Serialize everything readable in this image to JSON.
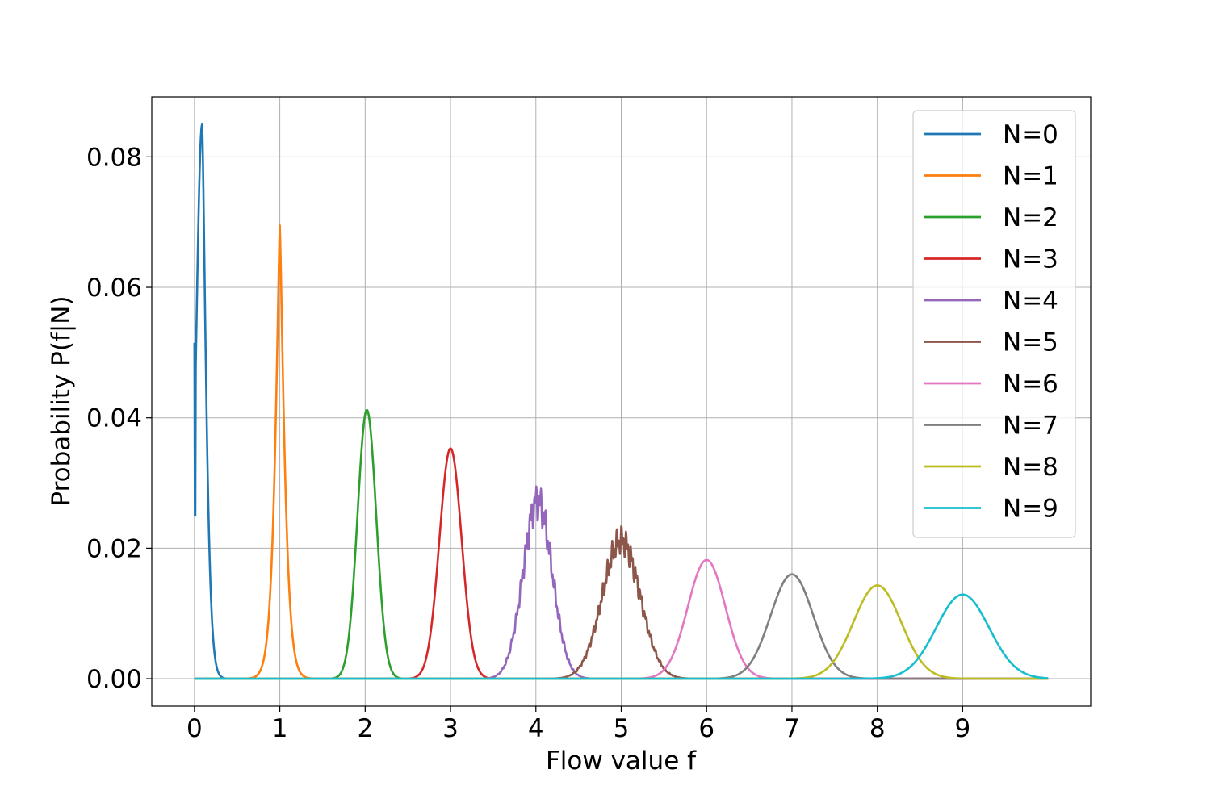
{
  "chart_data": {
    "type": "line",
    "title": "",
    "xlabel": "Flow value f",
    "ylabel": "Probability P(f|N)",
    "xlim": [
      -0.5,
      10.5
    ],
    "ylim": [
      -0.0042,
      0.0892
    ],
    "xticks": [
      0,
      1,
      2,
      3,
      4,
      5,
      6,
      7,
      8,
      9
    ],
    "xtick_labels": [
      "0",
      "1",
      "2",
      "3",
      "4",
      "5",
      "6",
      "7",
      "8",
      "9"
    ],
    "yticks": [
      0.0,
      0.02,
      0.04,
      0.06,
      0.08
    ],
    "ytick_labels": [
      "0.00",
      "0.02",
      "0.04",
      "0.06",
      "0.08"
    ],
    "grid": true,
    "legend_position": "top-right",
    "series": [
      {
        "name": "N=0",
        "color": "#1f77b4",
        "peak_x": 0.09,
        "peak_y": 0.085,
        "width": 0.07,
        "start_y": 0.0515,
        "x": [
          0,
          0.01,
          0.03,
          0.05,
          0.07,
          0.09,
          0.11,
          0.13,
          0.16,
          0.2,
          0.25,
          0.3,
          0.4,
          0.5,
          0.7,
          1.0,
          10.0
        ],
        "y": [
          0.0515,
          0.025,
          0.047,
          0.07,
          0.082,
          0.085,
          0.08,
          0.067,
          0.043,
          0.018,
          0.005,
          0.0015,
          0.0003,
          0.0001,
          0.0,
          0.0,
          0.0
        ]
      },
      {
        "name": "N=1",
        "color": "#ff7f0e",
        "peak_x": 1.0,
        "peak_y": 0.0695,
        "width": 0.065,
        "x": [
          0,
          0.6,
          0.75,
          0.85,
          0.9,
          0.95,
          0.98,
          1.0,
          1.02,
          1.05,
          1.1,
          1.15,
          1.25,
          1.4,
          10.0
        ],
        "y": [
          0.0,
          0.0,
          0.001,
          0.005,
          0.013,
          0.035,
          0.045,
          0.0695,
          0.045,
          0.03,
          0.013,
          0.005,
          0.001,
          0.0,
          0.0
        ]
      },
      {
        "name": "N=2",
        "color": "#2ca02c",
        "peak_x": 2.02,
        "peak_y": 0.0412,
        "width": 0.11,
        "x": [
          0,
          1.5,
          1.7,
          1.8,
          1.9,
          1.96,
          2.02,
          2.08,
          2.15,
          2.25,
          2.35,
          2.55,
          10.0
        ],
        "y": [
          0.0,
          0.0,
          0.002,
          0.008,
          0.022,
          0.033,
          0.0412,
          0.035,
          0.022,
          0.008,
          0.002,
          0.0,
          0.0
        ]
      },
      {
        "name": "N=3",
        "color": "#d62728",
        "peak_x": 3.0,
        "peak_y": 0.0353,
        "width": 0.13,
        "x": [
          0,
          2.5,
          2.7,
          2.8,
          2.9,
          2.95,
          3.0,
          3.05,
          3.1,
          3.2,
          3.3,
          3.5,
          10.0
        ],
        "y": [
          0.0,
          0.0,
          0.003,
          0.01,
          0.024,
          0.03,
          0.0353,
          0.031,
          0.024,
          0.01,
          0.003,
          0.0,
          0.0
        ]
      },
      {
        "name": "N=4",
        "color": "#9467bd",
        "peak_x": 4.02,
        "peak_y": 0.0272,
        "width": 0.17,
        "x": [
          0,
          3.4,
          3.6,
          3.75,
          3.85,
          3.95,
          4.02,
          4.1,
          4.2,
          4.3,
          4.45,
          4.7,
          10.0
        ],
        "y": [
          0.0,
          0.0,
          0.002,
          0.007,
          0.014,
          0.022,
          0.0272,
          0.023,
          0.015,
          0.007,
          0.002,
          0.0,
          0.0
        ]
      },
      {
        "name": "N=5",
        "color": "#8c564b",
        "peak_x": 5.0,
        "peak_y": 0.0212,
        "width": 0.22,
        "x": [
          0,
          4.3,
          4.5,
          4.7,
          4.85,
          4.95,
          5.0,
          5.1,
          5.2,
          5.35,
          5.55,
          5.9,
          10.0
        ],
        "y": [
          0.0,
          0.0,
          0.002,
          0.006,
          0.011,
          0.014,
          0.0212,
          0.019,
          0.016,
          0.009,
          0.003,
          0.0,
          0.0
        ]
      },
      {
        "name": "N=6",
        "color": "#e377c2",
        "peak_x": 6.0,
        "peak_y": 0.0182,
        "width": 0.22,
        "x": [
          0,
          5.3,
          5.5,
          5.7,
          5.85,
          6.0,
          6.15,
          6.3,
          6.5,
          6.7,
          10.0
        ],
        "y": [
          0.0,
          0.0,
          0.001,
          0.006,
          0.014,
          0.0182,
          0.014,
          0.006,
          0.001,
          0.0,
          0.0
        ]
      },
      {
        "name": "N=7",
        "color": "#7f7f7f",
        "peak_x": 7.0,
        "peak_y": 0.016,
        "width": 0.25,
        "x": [
          0,
          6.2,
          6.4,
          6.6,
          6.8,
          7.0,
          7.2,
          7.4,
          7.6,
          7.8,
          10.0
        ],
        "y": [
          0.0,
          0.0,
          0.001,
          0.004,
          0.011,
          0.016,
          0.011,
          0.004,
          0.001,
          0.0,
          0.0
        ]
      },
      {
        "name": "N=8",
        "color": "#bcbd22",
        "peak_x": 8.0,
        "peak_y": 0.0143,
        "width": 0.28,
        "x": [
          0,
          7.1,
          7.4,
          7.6,
          7.8,
          8.0,
          8.2,
          8.4,
          8.6,
          8.9,
          10.0
        ],
        "y": [
          0.0,
          0.0,
          0.001,
          0.005,
          0.011,
          0.0143,
          0.011,
          0.005,
          0.001,
          0.0,
          0.0
        ]
      },
      {
        "name": "N=9",
        "color": "#17becf",
        "peak_x": 9.0,
        "peak_y": 0.0129,
        "width": 0.31,
        "x": [
          0,
          8.0,
          8.3,
          8.5,
          8.75,
          9.0,
          9.25,
          9.5,
          9.7,
          10.0
        ],
        "y": [
          0.0,
          0.0,
          0.001,
          0.004,
          0.009,
          0.0129,
          0.009,
          0.004,
          0.001,
          0.0002
        ]
      }
    ]
  }
}
